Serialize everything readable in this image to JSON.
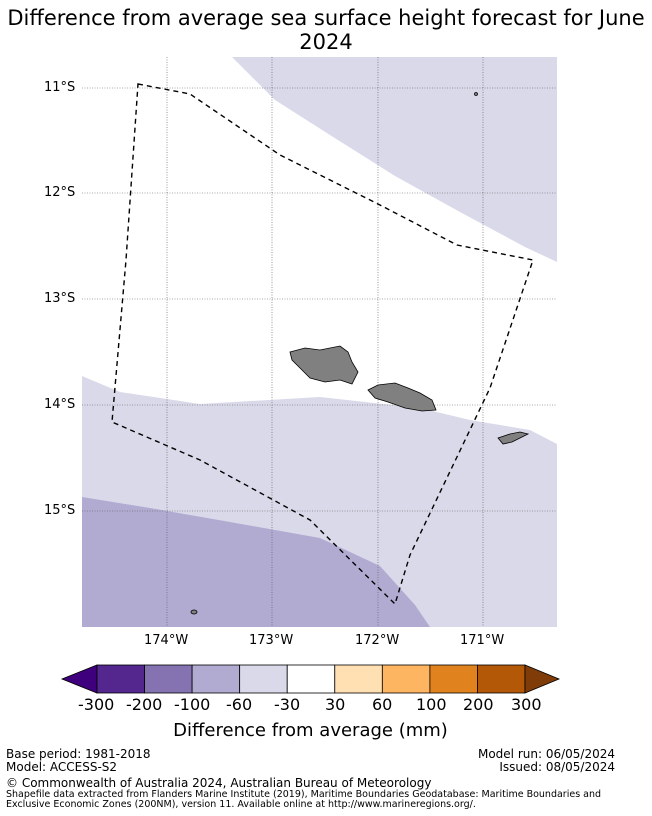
{
  "title": "Difference from average sea surface height forecast for June 2024",
  "lat_labels": [
    "11°S",
    "12°S",
    "13°S",
    "14°S",
    "15°S"
  ],
  "lon_labels": [
    "174°W",
    "173°W",
    "172°W",
    "171°W"
  ],
  "colorbar": {
    "label": "Difference from average (mm)",
    "ticks": [
      "-300",
      "-200",
      "-100",
      "-60",
      "-30",
      "30",
      "60",
      "100",
      "200",
      "300"
    ],
    "colors": [
      "#3f007d",
      "#54278f",
      "#8473b0",
      "#b1abd2",
      "#d9d9ea",
      "#ffffff",
      "#ffe0b2",
      "#fdb561",
      "#e0821d",
      "#b35806",
      "#7f3b08"
    ]
  },
  "footer": {
    "base_period": "Base period: 1981-2018",
    "model": "Model: ACCESS-S2",
    "model_run": "Model run: 06/05/2024",
    "issued": "Issued: 08/05/2024",
    "copyright": "© Commonwealth of Australia 2024, Australian Bureau of Meteorology",
    "shapefile_line1": "Shapefile data extracted from Flanders Marine Institute (2019), Maritime Boundaries Geodatabase: Maritime Boundaries and",
    "shapefile_line2": "Exclusive Economic Zones (200NM), version 11. Available online at http://www.marineregions.org/."
  }
}
